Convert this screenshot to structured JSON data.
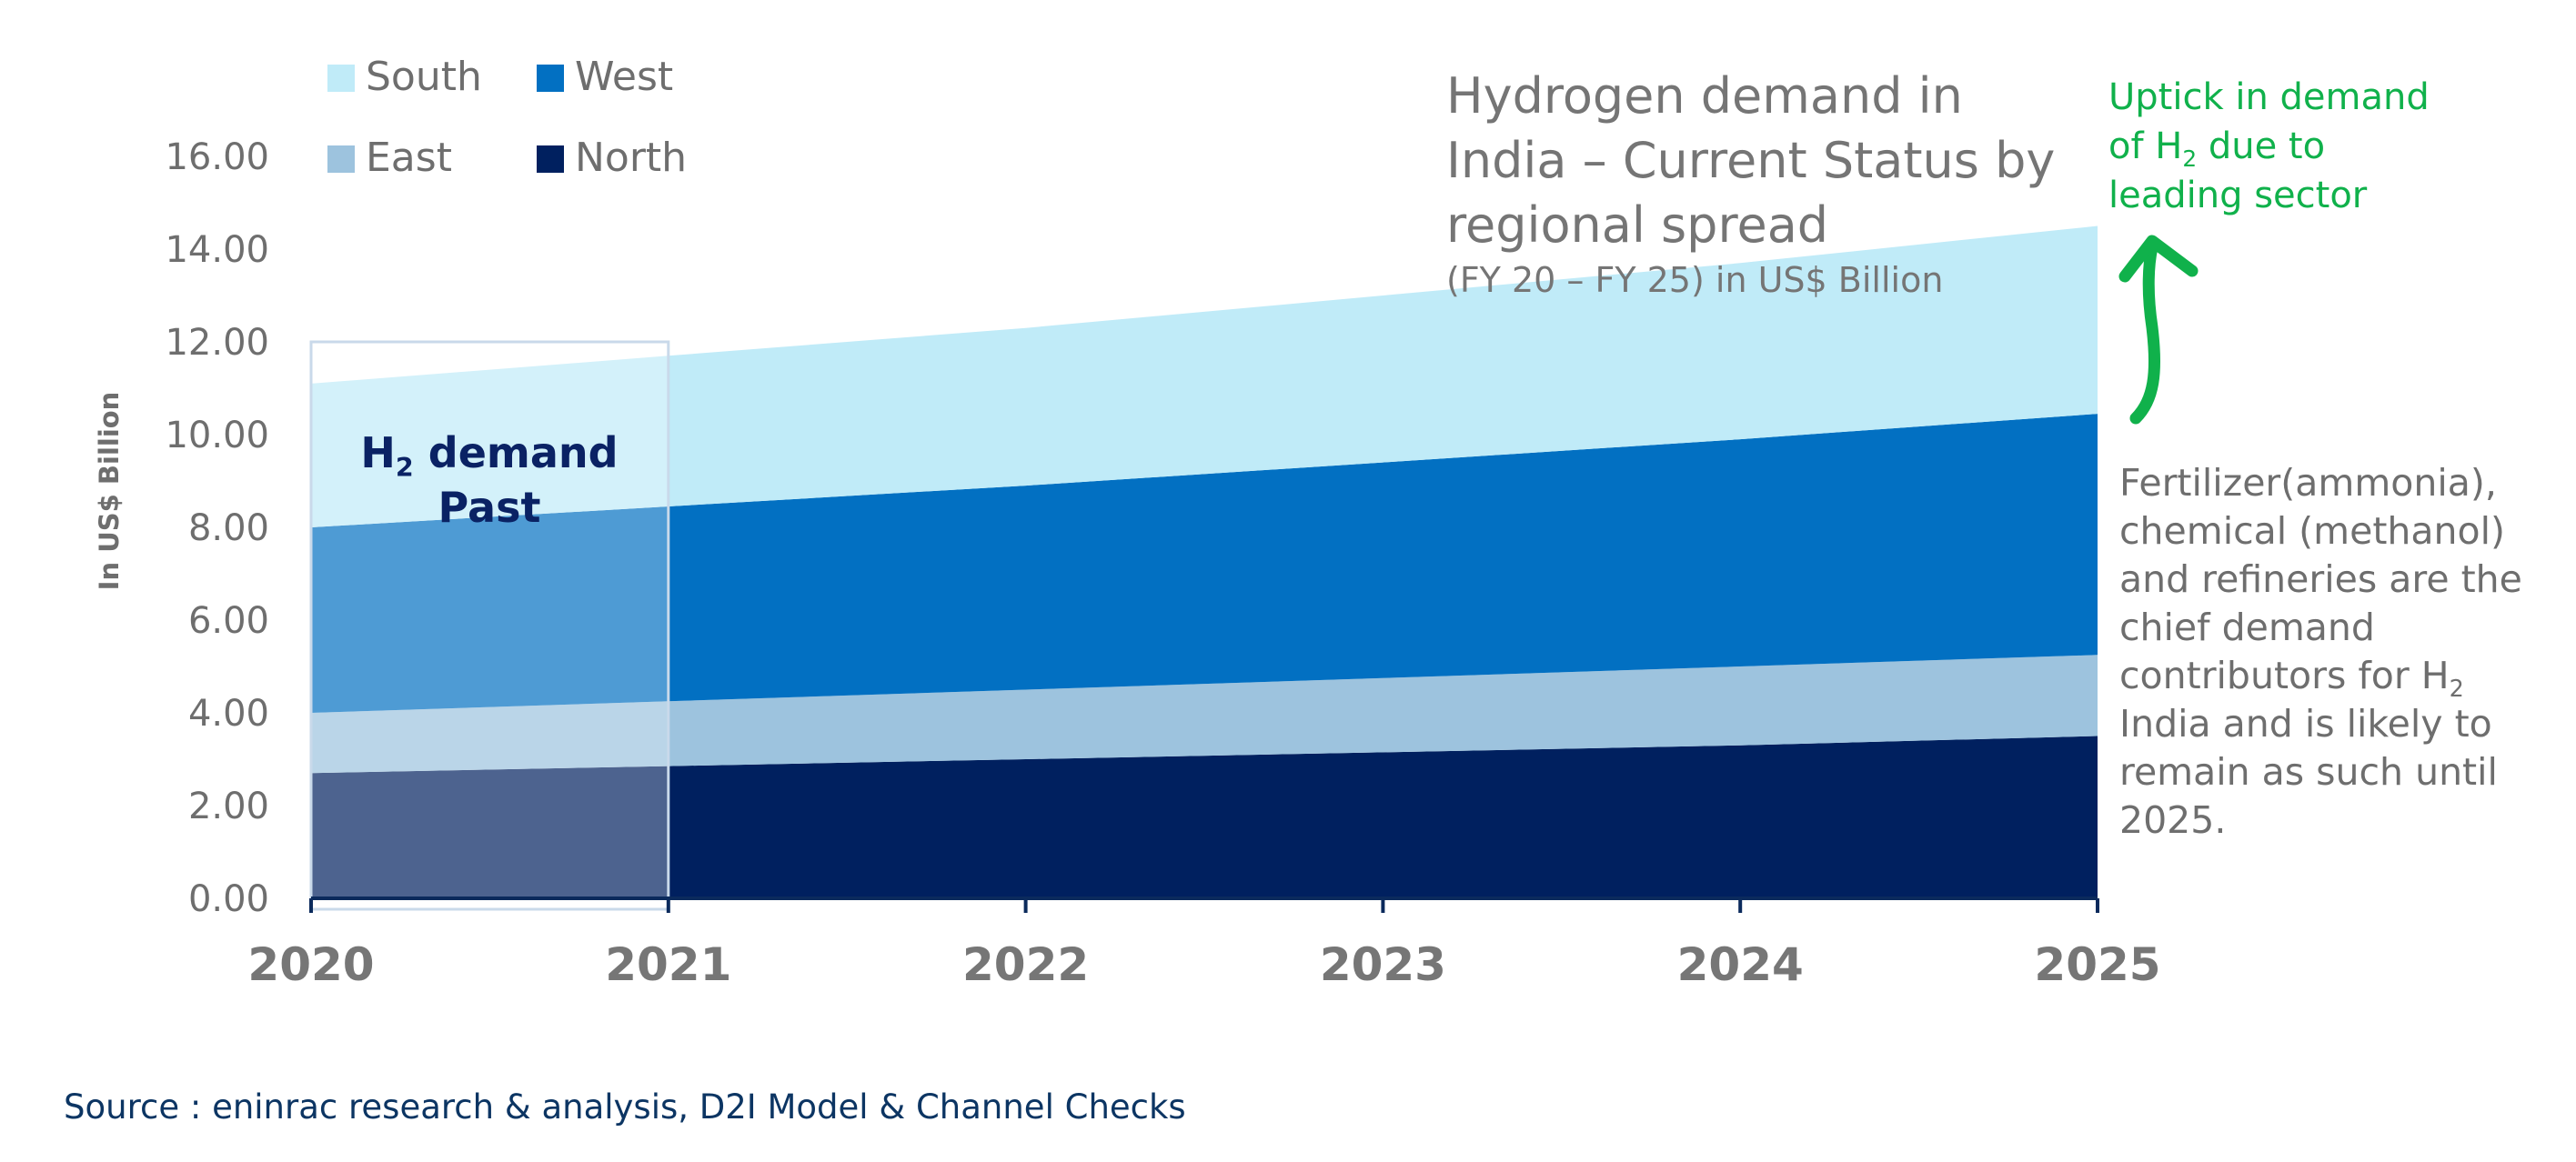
{
  "chart_data": {
    "type": "area",
    "stacked": true,
    "title": "Hydrogen demand in India – Current Status by regional spread",
    "subtitle": "(FY 20 – FY 25) in US$ Billion",
    "ylabel": "In US$ Billion",
    "xlabel": "",
    "x": [
      "2020",
      "2021",
      "2022",
      "2023",
      "2024",
      "2025"
    ],
    "ylim": [
      0,
      16
    ],
    "yticks": [
      "0.00",
      "2.00",
      "4.00",
      "6.00",
      "8.00",
      "10.00",
      "12.00",
      "14.00",
      "16.00"
    ],
    "series": [
      {
        "name": "North",
        "color": "#00205f",
        "values": [
          2.7,
          2.85,
          3.0,
          3.15,
          3.3,
          3.5
        ]
      },
      {
        "name": "East",
        "color": "#9dc3de",
        "values": [
          1.3,
          1.4,
          1.5,
          1.6,
          1.7,
          1.75
        ]
      },
      {
        "name": "West",
        "color": "#0270c2",
        "values": [
          4.0,
          4.2,
          4.4,
          4.65,
          4.9,
          5.2
        ]
      },
      {
        "name": "South",
        "color": "#c0ebf8",
        "values": [
          3.1,
          3.25,
          3.4,
          3.6,
          3.8,
          4.05
        ]
      }
    ],
    "legend": [
      "South",
      "West",
      "East",
      "North"
    ],
    "legend_position": "top-left",
    "highlight": {
      "from": "2020",
      "to": "2021",
      "label_main": "H",
      "label_sub": "2",
      "label_rest": "demand",
      "label_line2": "Past",
      "color": "#0a2264"
    }
  },
  "annotations": {
    "uptick_line1": "Uptick in demand",
    "uptick_line2_pre": "of H",
    "uptick_line2_sub": "2",
    "uptick_line2_post": "due to",
    "uptick_line3": "leading sector",
    "uptick_color": "#10b14b",
    "note_part1": "Fertilizer(ammonia), chemical (methanol) and refineries are the chief demand contributors for H",
    "note_sub": "2",
    "note_part2": "India and is likely to remain as such until 2025."
  },
  "source": "Source : eninrac research & analysis, D2I Model & Channel Checks"
}
